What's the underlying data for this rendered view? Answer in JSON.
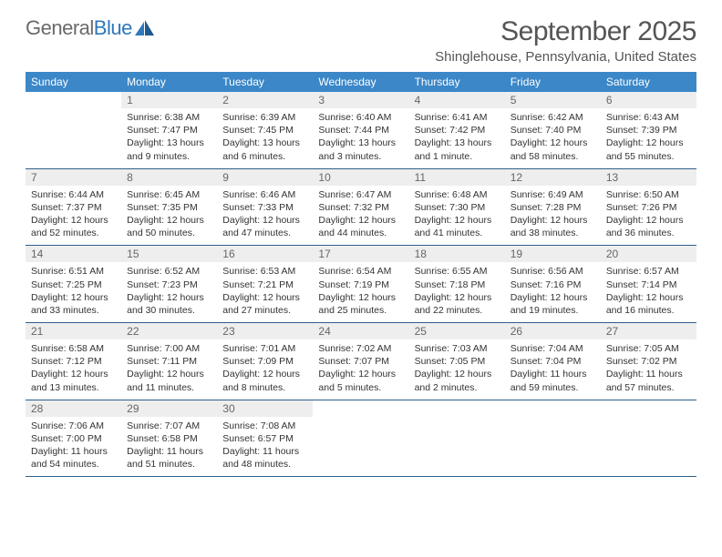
{
  "logo": {
    "text_gray": "General",
    "text_blue": "Blue"
  },
  "title": "September 2025",
  "location": "Shinglehouse, Pennsylvania, United States",
  "colors": {
    "header_bg": "#3b87c8",
    "header_text": "#ffffff",
    "daynum_bg": "#eeeeee",
    "daynum_text": "#666666",
    "rule": "#2f5f8a",
    "body_text": "#333333",
    "logo_gray": "#6a6a6a",
    "logo_blue": "#2e78bd"
  },
  "day_headers": [
    "Sunday",
    "Monday",
    "Tuesday",
    "Wednesday",
    "Thursday",
    "Friday",
    "Saturday"
  ],
  "weeks": [
    [
      null,
      {
        "n": "1",
        "sr": "Sunrise: 6:38 AM",
        "ss": "Sunset: 7:47 PM",
        "dl": "Daylight: 13 hours and 9 minutes."
      },
      {
        "n": "2",
        "sr": "Sunrise: 6:39 AM",
        "ss": "Sunset: 7:45 PM",
        "dl": "Daylight: 13 hours and 6 minutes."
      },
      {
        "n": "3",
        "sr": "Sunrise: 6:40 AM",
        "ss": "Sunset: 7:44 PM",
        "dl": "Daylight: 13 hours and 3 minutes."
      },
      {
        "n": "4",
        "sr": "Sunrise: 6:41 AM",
        "ss": "Sunset: 7:42 PM",
        "dl": "Daylight: 13 hours and 1 minute."
      },
      {
        "n": "5",
        "sr": "Sunrise: 6:42 AM",
        "ss": "Sunset: 7:40 PM",
        "dl": "Daylight: 12 hours and 58 minutes."
      },
      {
        "n": "6",
        "sr": "Sunrise: 6:43 AM",
        "ss": "Sunset: 7:39 PM",
        "dl": "Daylight: 12 hours and 55 minutes."
      }
    ],
    [
      {
        "n": "7",
        "sr": "Sunrise: 6:44 AM",
        "ss": "Sunset: 7:37 PM",
        "dl": "Daylight: 12 hours and 52 minutes."
      },
      {
        "n": "8",
        "sr": "Sunrise: 6:45 AM",
        "ss": "Sunset: 7:35 PM",
        "dl": "Daylight: 12 hours and 50 minutes."
      },
      {
        "n": "9",
        "sr": "Sunrise: 6:46 AM",
        "ss": "Sunset: 7:33 PM",
        "dl": "Daylight: 12 hours and 47 minutes."
      },
      {
        "n": "10",
        "sr": "Sunrise: 6:47 AM",
        "ss": "Sunset: 7:32 PM",
        "dl": "Daylight: 12 hours and 44 minutes."
      },
      {
        "n": "11",
        "sr": "Sunrise: 6:48 AM",
        "ss": "Sunset: 7:30 PM",
        "dl": "Daylight: 12 hours and 41 minutes."
      },
      {
        "n": "12",
        "sr": "Sunrise: 6:49 AM",
        "ss": "Sunset: 7:28 PM",
        "dl": "Daylight: 12 hours and 38 minutes."
      },
      {
        "n": "13",
        "sr": "Sunrise: 6:50 AM",
        "ss": "Sunset: 7:26 PM",
        "dl": "Daylight: 12 hours and 36 minutes."
      }
    ],
    [
      {
        "n": "14",
        "sr": "Sunrise: 6:51 AM",
        "ss": "Sunset: 7:25 PM",
        "dl": "Daylight: 12 hours and 33 minutes."
      },
      {
        "n": "15",
        "sr": "Sunrise: 6:52 AM",
        "ss": "Sunset: 7:23 PM",
        "dl": "Daylight: 12 hours and 30 minutes."
      },
      {
        "n": "16",
        "sr": "Sunrise: 6:53 AM",
        "ss": "Sunset: 7:21 PM",
        "dl": "Daylight: 12 hours and 27 minutes."
      },
      {
        "n": "17",
        "sr": "Sunrise: 6:54 AM",
        "ss": "Sunset: 7:19 PM",
        "dl": "Daylight: 12 hours and 25 minutes."
      },
      {
        "n": "18",
        "sr": "Sunrise: 6:55 AM",
        "ss": "Sunset: 7:18 PM",
        "dl": "Daylight: 12 hours and 22 minutes."
      },
      {
        "n": "19",
        "sr": "Sunrise: 6:56 AM",
        "ss": "Sunset: 7:16 PM",
        "dl": "Daylight: 12 hours and 19 minutes."
      },
      {
        "n": "20",
        "sr": "Sunrise: 6:57 AM",
        "ss": "Sunset: 7:14 PM",
        "dl": "Daylight: 12 hours and 16 minutes."
      }
    ],
    [
      {
        "n": "21",
        "sr": "Sunrise: 6:58 AM",
        "ss": "Sunset: 7:12 PM",
        "dl": "Daylight: 12 hours and 13 minutes."
      },
      {
        "n": "22",
        "sr": "Sunrise: 7:00 AM",
        "ss": "Sunset: 7:11 PM",
        "dl": "Daylight: 12 hours and 11 minutes."
      },
      {
        "n": "23",
        "sr": "Sunrise: 7:01 AM",
        "ss": "Sunset: 7:09 PM",
        "dl": "Daylight: 12 hours and 8 minutes."
      },
      {
        "n": "24",
        "sr": "Sunrise: 7:02 AM",
        "ss": "Sunset: 7:07 PM",
        "dl": "Daylight: 12 hours and 5 minutes."
      },
      {
        "n": "25",
        "sr": "Sunrise: 7:03 AM",
        "ss": "Sunset: 7:05 PM",
        "dl": "Daylight: 12 hours and 2 minutes."
      },
      {
        "n": "26",
        "sr": "Sunrise: 7:04 AM",
        "ss": "Sunset: 7:04 PM",
        "dl": "Daylight: 11 hours and 59 minutes."
      },
      {
        "n": "27",
        "sr": "Sunrise: 7:05 AM",
        "ss": "Sunset: 7:02 PM",
        "dl": "Daylight: 11 hours and 57 minutes."
      }
    ],
    [
      {
        "n": "28",
        "sr": "Sunrise: 7:06 AM",
        "ss": "Sunset: 7:00 PM",
        "dl": "Daylight: 11 hours and 54 minutes."
      },
      {
        "n": "29",
        "sr": "Sunrise: 7:07 AM",
        "ss": "Sunset: 6:58 PM",
        "dl": "Daylight: 11 hours and 51 minutes."
      },
      {
        "n": "30",
        "sr": "Sunrise: 7:08 AM",
        "ss": "Sunset: 6:57 PM",
        "dl": "Daylight: 11 hours and 48 minutes."
      },
      null,
      null,
      null,
      null
    ]
  ]
}
